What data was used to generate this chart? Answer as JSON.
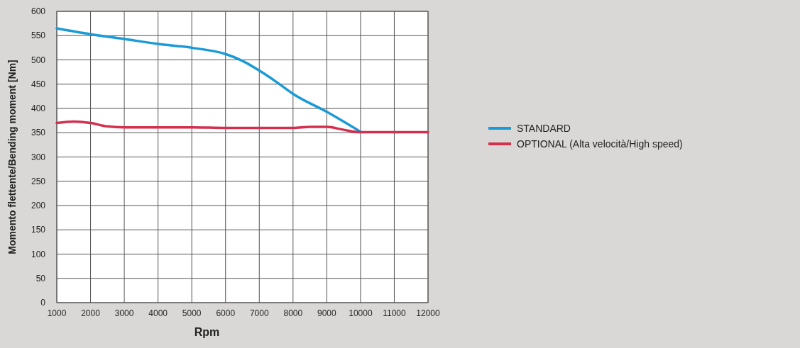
{
  "chart_data": {
    "type": "line",
    "xlabel": "Rpm",
    "ylabel": "Momento flettente/Bending moment [Nm]",
    "xlim": [
      1000,
      12000
    ],
    "ylim": [
      0,
      600
    ],
    "xticks": [
      1000,
      2000,
      3000,
      4000,
      5000,
      6000,
      7000,
      8000,
      9000,
      10000,
      11000,
      12000
    ],
    "yticks": [
      0,
      50,
      100,
      150,
      200,
      250,
      300,
      350,
      400,
      450,
      500,
      550,
      600
    ],
    "grid": true,
    "legend": "right",
    "line_style": "solid",
    "marker": "none",
    "series": [
      {
        "name": "STANDARD",
        "color": "#1a9ad6",
        "x": [
          1000,
          2000,
          3000,
          4000,
          5000,
          6000,
          6500,
          7000,
          7500,
          8000,
          9000,
          10000
        ],
        "values": [
          565,
          553,
          543,
          533,
          525,
          512,
          498,
          478,
          455,
          430,
          393,
          352
        ]
      },
      {
        "name": "OPTIONAL (Alta velocità/High speed)",
        "color": "#d3304e",
        "x": [
          1000,
          1500,
          2000,
          2500,
          3000,
          4000,
          5000,
          6000,
          7000,
          8000,
          8500,
          9000,
          9500,
          10000,
          11000,
          12000
        ],
        "values": [
          370,
          373,
          370,
          363,
          361,
          361,
          361,
          360,
          360,
          360,
          362,
          362,
          356,
          351,
          351,
          351
        ]
      }
    ]
  }
}
